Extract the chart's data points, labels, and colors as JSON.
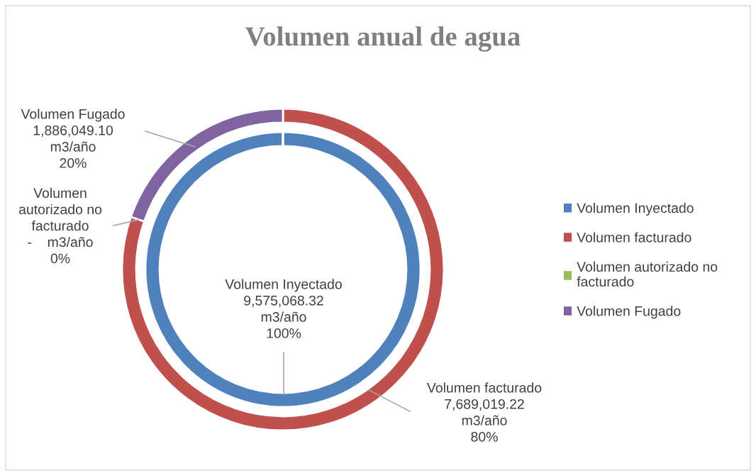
{
  "chart_data": {
    "type": "donut",
    "title": "Volumen anual de agua",
    "categories": [
      "Volumen Inyectado",
      "Volumen facturado",
      "Volumen autorizado no\nfacturado",
      "Volumen Fugado"
    ],
    "colors": [
      "#4f81bd",
      "#c0504d",
      "#9bbb59",
      "#8064a2"
    ],
    "series": [
      {
        "values": [
          9575068.32,
          null,
          null,
          null
        ],
        "value_labels": [
          "Volumen Inyectado\n9,575,068.32\nm3/año\n100%",
          null,
          null,
          null
        ]
      },
      {
        "values": [
          null,
          7689019.22,
          0,
          1886049.1
        ],
        "value_labels": [
          null,
          "Volumen facturado\n7,689,019.22\nm3/año\n80%",
          "Volumen\nautorizado no\nfacturado\n-    m3/año\n0%",
          "Volumen Fugado\n1,886,049.10\nm3/año\n20%"
        ]
      }
    ],
    "legend": "right"
  }
}
